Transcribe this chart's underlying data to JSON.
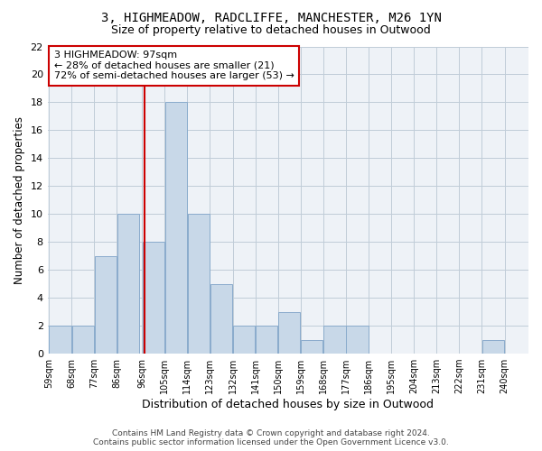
{
  "title_line1": "3, HIGHMEADOW, RADCLIFFE, MANCHESTER, M26 1YN",
  "title_line2": "Size of property relative to detached houses in Outwood",
  "xlabel": "Distribution of detached houses by size in Outwood",
  "ylabel": "Number of detached properties",
  "bins": [
    59,
    68,
    77,
    86,
    96,
    105,
    114,
    123,
    132,
    141,
    150,
    159,
    168,
    177,
    186,
    195,
    204,
    213,
    222,
    231,
    240
  ],
  "counts": [
    2,
    2,
    7,
    10,
    8,
    18,
    10,
    5,
    2,
    2,
    3,
    1,
    2,
    2,
    0,
    0,
    0,
    0,
    0,
    1
  ],
  "tick_labels": [
    "59sqm",
    "68sqm",
    "77sqm",
    "86sqm",
    "96sqm",
    "105sqm",
    "114sqm",
    "123sqm",
    "132sqm",
    "141sqm",
    "150sqm",
    "159sqm",
    "168sqm",
    "177sqm",
    "186sqm",
    "195sqm",
    "204sqm",
    "213sqm",
    "222sqm",
    "231sqm",
    "240sqm"
  ],
  "bar_color": "#c8d8e8",
  "bar_edge_color": "#8aabcc",
  "property_value": 97,
  "vline_color": "#cc0000",
  "annotation_line1": "3 HIGHMEADOW: 97sqm",
  "annotation_line2": "← 28% of detached houses are smaller (21)",
  "annotation_line3": "72% of semi-detached houses are larger (53) →",
  "annotation_box_color": "#ffffff",
  "annotation_box_edge_color": "#cc0000",
  "ylim": [
    0,
    22
  ],
  "yticks": [
    0,
    2,
    4,
    6,
    8,
    10,
    12,
    14,
    16,
    18,
    20,
    22
  ],
  "footer_line1": "Contains HM Land Registry data © Crown copyright and database right 2024.",
  "footer_line2": "Contains public sector information licensed under the Open Government Licence v3.0.",
  "bg_color": "#eef2f7",
  "grid_color": "#c0ccd8",
  "title_fontsize": 10,
  "subtitle_fontsize": 9,
  "ylabel_fontsize": 8.5,
  "xlabel_fontsize": 9,
  "annot_fontsize": 8,
  "tick_fontsize": 7,
  "footer_fontsize": 6.5
}
